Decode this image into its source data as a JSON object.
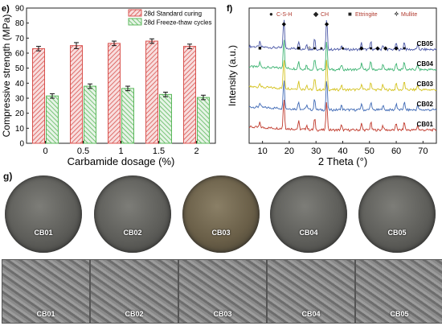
{
  "panel_e": {
    "label": "e)",
    "chart_data": {
      "type": "bar",
      "categories": [
        "0",
        "0.5",
        "1",
        "1.5",
        "2"
      ],
      "series": [
        {
          "name": "28d Standard curing",
          "values": [
            63,
            65,
            66.5,
            68,
            64.5
          ],
          "errors": [
            1.5,
            2,
            1.5,
            1.5,
            1.5
          ],
          "color": "#d9534f"
        },
        {
          "name": "28d Freeze-thaw cycles",
          "values": [
            31.5,
            38,
            36.5,
            32.5,
            30.5
          ],
          "errors": [
            1.5,
            1.5,
            1.5,
            1.5,
            1.5
          ],
          "color": "#5cb85c"
        }
      ],
      "xlabel": "Carbamide dosage (%)",
      "ylabel": "Compressive strength (MPa)",
      "ylim": [
        0,
        90
      ],
      "yticks": [
        0,
        10,
        20,
        30,
        40,
        50,
        60,
        70,
        80,
        90
      ],
      "legend": "top-right"
    }
  },
  "panel_f": {
    "label": "f)",
    "chart_data": {
      "type": "line",
      "xlabel": "2 Theta (°)",
      "ylabel": "Intensity (a.u.)",
      "xlim": [
        5,
        75
      ],
      "xticks": [
        10,
        20,
        30,
        40,
        50,
        60,
        70
      ],
      "legend_items": [
        {
          "symbol": "●",
          "name": "C-S-H"
        },
        {
          "symbol": "◆",
          "name": "CH"
        },
        {
          "symbol": "■",
          "name": "Ettringite"
        },
        {
          "symbol": "✧",
          "name": "Mullite"
        }
      ],
      "series": [
        {
          "name": "CB05",
          "color": "#4a57a6",
          "offset": 4
        },
        {
          "name": "CB04",
          "color": "#3cb371",
          "offset": 3
        },
        {
          "name": "CB03",
          "color": "#d4c21f",
          "offset": 2
        },
        {
          "name": "CB02",
          "color": "#3d68b5",
          "offset": 1
        },
        {
          "name": "CB01",
          "color": "#c0392b",
          "offset": 0
        }
      ],
      "peaks": [
        9,
        18,
        23.5,
        26.5,
        29.5,
        34,
        39.5,
        47,
        50.5,
        55,
        60,
        63,
        68
      ]
    }
  },
  "panel_g": {
    "label": "g)",
    "samples": [
      "CB01",
      "CB02",
      "CB03",
      "CB04",
      "CB05"
    ]
  }
}
